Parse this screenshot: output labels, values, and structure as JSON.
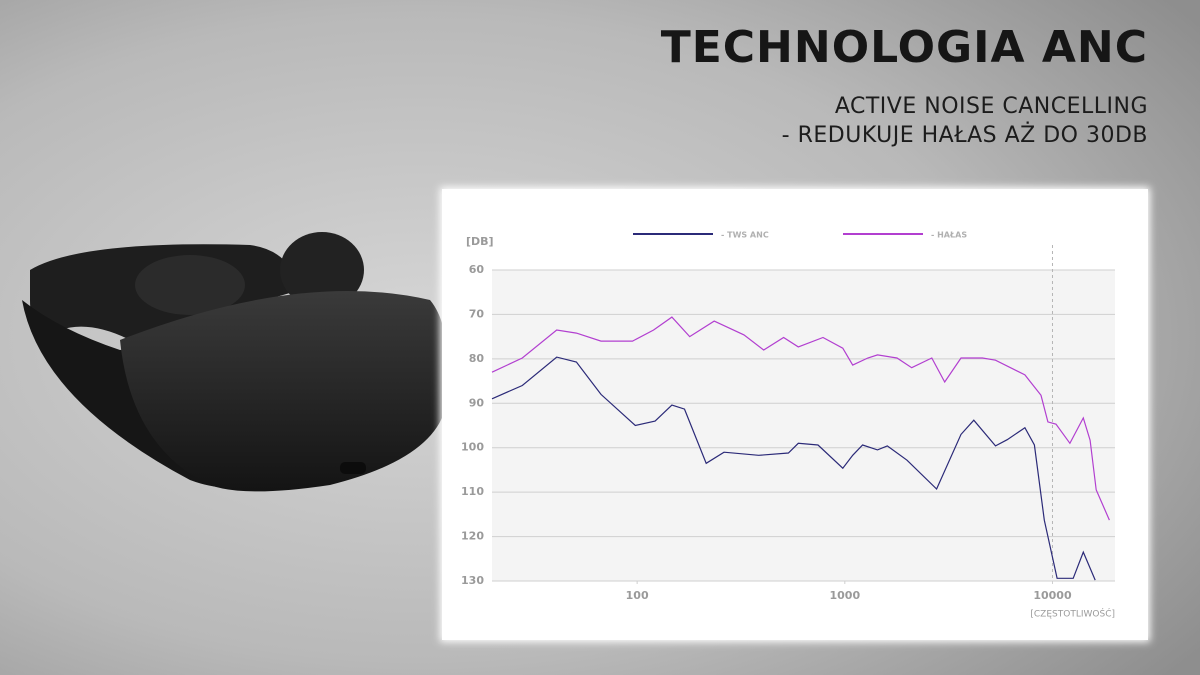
{
  "header": {
    "title": "TECHNOLOGIA ANC",
    "subtitle_lines": [
      "ACTIVE NOISE CANCELLING",
      "- REDUKUJE HAŁAS AŻ DO 30DB"
    ]
  },
  "chart_data": {
    "type": "line",
    "ylabel": "[DB]",
    "xlabel": "[CZĘSTOTLIWOŚĆ]",
    "xscale": "log",
    "xlim": [
      20,
      20000
    ],
    "xticks": [
      100,
      1000,
      10000
    ],
    "ylim": [
      60,
      130
    ],
    "yticks": [
      60,
      70,
      80,
      90,
      100,
      110,
      120,
      130
    ],
    "y_inverted": true,
    "grid": true,
    "legend": "top",
    "vlines": [
      10000
    ],
    "series": [
      {
        "name": "- TWS ANC",
        "color": "#2b2a78",
        "x": [
          20,
          28,
          41,
          51,
          67,
          98,
          122,
          147,
          169,
          215,
          262,
          385,
          535,
          597,
          743,
          978,
          1091,
          1218,
          1437,
          1602,
          1993,
          2767,
          3626,
          4180,
          5318,
          6052,
          7362,
          8180,
          9130,
          10530,
          12580,
          14070,
          16050
        ],
        "values": [
          89,
          86,
          79.6,
          80.7,
          88,
          95,
          94,
          90.4,
          91.3,
          103.5,
          101,
          101.7,
          101.2,
          99,
          99.4,
          104.6,
          101.7,
          99.4,
          100.5,
          99.6,
          102.8,
          109.3,
          97,
          93.8,
          99.6,
          98.2,
          95.5,
          99.4,
          116.3,
          129.4,
          129.4,
          123.5,
          129.8
        ]
      },
      {
        "name": "- HAŁAS",
        "color": "#b23fd0",
        "x": [
          20,
          28,
          41,
          51,
          67,
          95,
          120,
          147,
          179,
          235,
          327,
          407,
          507,
          597,
          785,
          978,
          1091,
          1290,
          1437,
          1784,
          2100,
          2622,
          3026,
          3626,
          4600,
          5318,
          7362,
          8800,
          9500,
          10400,
          12130,
          14070,
          15170,
          16230,
          18800
        ],
        "values": [
          83,
          79.8,
          73.5,
          74.2,
          76,
          76,
          73.5,
          70.6,
          75,
          71.5,
          74.6,
          78,
          75.2,
          77.3,
          75.2,
          77.6,
          81.4,
          79.8,
          79.1,
          79.8,
          82,
          79.8,
          85.2,
          79.8,
          79.8,
          80.3,
          83.6,
          88.2,
          94.2,
          94.7,
          99,
          93.3,
          98.3,
          109.5,
          116.3
        ]
      }
    ]
  }
}
